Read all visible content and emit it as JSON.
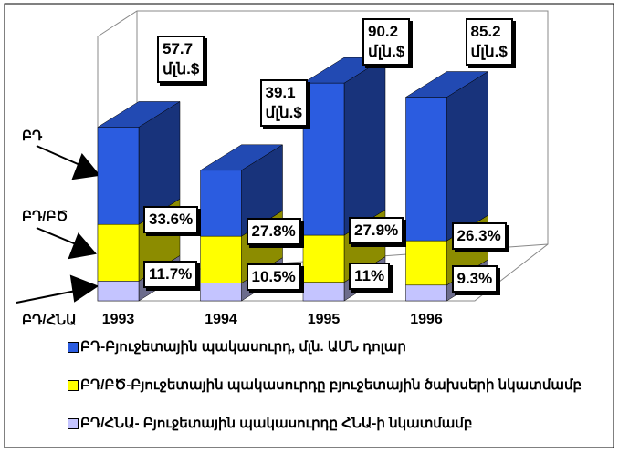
{
  "chart_data": {
    "type": "bar3d_stacked",
    "categories": [
      "1993",
      "1994",
      "1995",
      "1996"
    ],
    "series": [
      {
        "name": "ԲԴ-Բյուջետային պակասուրդ, մլն. ԱՄՆ դոլար",
        "short_name": "ԲԴ",
        "color": "#2b5ce0",
        "values": [
          57.7,
          39.1,
          90.2,
          85.2
        ],
        "value_labels": [
          "57.7\nմլն.$",
          "39.1\nմլն.$",
          "90.2\nմլն.$",
          "85.2\nմլն.$"
        ]
      },
      {
        "name": "ԲԴ/ԲԾ-Բյուջետային պակասուրդը բյուջետային ծախսերի նկատմամբ",
        "short_name": "ԲԴ/ԲԾ",
        "color": "#ffff00",
        "values": [
          33.6,
          27.8,
          27.9,
          26.3
        ],
        "value_labels": [
          "33.6%",
          "27.8%",
          "27.9%",
          "26.3%"
        ]
      },
      {
        "name": "ԲԴ/ՀՆԱ- Բյուջետային պակասուրդը ՀՆԱ-ի նկատմամբ",
        "short_name": "ԲԴ/ՀՆԱ",
        "color": "#c4c4ff",
        "values": [
          11.7,
          10.5,
          11,
          9.3
        ],
        "value_labels": [
          "11.7%",
          "10.5%",
          "11%",
          "9.3%"
        ]
      }
    ]
  }
}
